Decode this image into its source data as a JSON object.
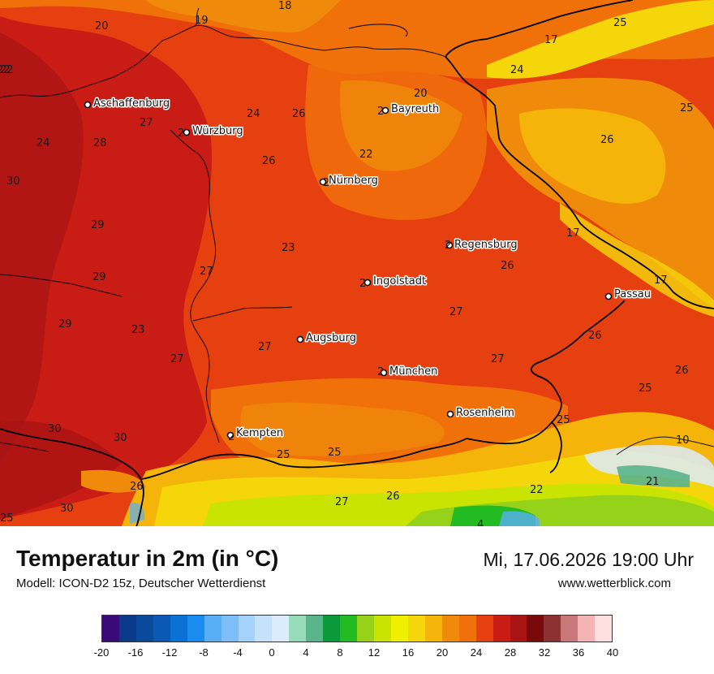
{
  "title": "Temperatur in 2m (in °C)",
  "subtitle": "Modell: ICON-D2 15z, Deutscher Wetterdienst",
  "datetime": "Mi, 17.06.2026 19:00 Uhr",
  "website": "www.wetterblick.com",
  "cities": [
    {
      "name": "Aschaffenburg",
      "value": ""
    },
    {
      "name": "Würzburg",
      "value": "2"
    },
    {
      "name": "Bayreuth",
      "value": "2"
    },
    {
      "name": "Nürnberg",
      "value": "2"
    },
    {
      "name": "Regensburg",
      "value": "2"
    },
    {
      "name": "Ingolstadt",
      "value": "2"
    },
    {
      "name": "Passau",
      "value": ""
    },
    {
      "name": "Augsburg",
      "value": ""
    },
    {
      "name": "München",
      "value": "2"
    },
    {
      "name": "Rosenheim",
      "value": ""
    },
    {
      "name": "Kempten",
      "value": "2"
    }
  ],
  "values": [
    "18",
    "19",
    "20",
    "17",
    "25",
    "24",
    "25",
    "22",
    "24",
    "26",
    "27",
    "28",
    "20",
    "24",
    "26",
    "22",
    "30",
    "29",
    "29",
    "23",
    "27",
    "26",
    "17",
    "17",
    "26",
    "29",
    "27",
    "27",
    "23",
    "27",
    "27",
    "26",
    "26",
    "25",
    "25",
    "30",
    "30",
    "10",
    "25",
    "25",
    "21",
    "26",
    "22",
    "27",
    "26",
    "22",
    "25",
    "30",
    "4"
  ],
  "legend": {
    "ticks": [
      "-20",
      "-16",
      "-12",
      "-8",
      "-4",
      "0",
      "4",
      "8",
      "12",
      "16",
      "20",
      "24",
      "28",
      "32",
      "36",
      "40"
    ],
    "colors": [
      "#3a0a7a",
      "#0a3a8a",
      "#0a4a9a",
      "#0a5ab5",
      "#0a72d4",
      "#1a8cf0",
      "#5aaef5",
      "#7ebef8",
      "#a4d2fa",
      "#c4e2fb",
      "#dcecfc",
      "#96dcb8",
      "#5ab48c",
      "#0a9a3a",
      "#22bc22",
      "#96d21a",
      "#c8e400",
      "#eef000",
      "#f5d60a",
      "#f5b40a",
      "#f08a0a",
      "#f0700a",
      "#e64010",
      "#c81c14",
      "#aa1414",
      "#780a0a",
      "#8c3232",
      "#c87878",
      "#f5b4b4",
      "#ffe0e0"
    ]
  }
}
